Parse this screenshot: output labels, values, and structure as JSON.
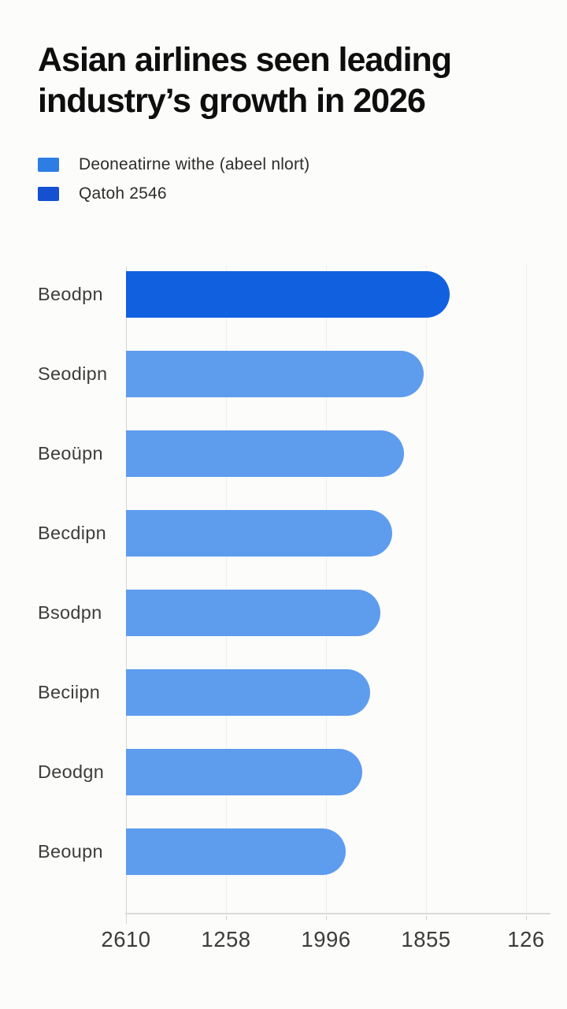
{
  "title": {
    "line1": "Asian airlines seen leading",
    "line2": "industry’s growth in 2026"
  },
  "legend": {
    "items": [
      {
        "label": "Deoneatirne withe (abeel nlort)",
        "color": "#2e7de4"
      },
      {
        "label": "Qatoh 2546",
        "color": "#1450cf"
      }
    ]
  },
  "colors": {
    "bar_light": "#5e9cee",
    "bar_dark": "#1160e0",
    "axis_line": "#d5d5d2",
    "gridline": "#f0efec",
    "title_text": "#0e0e0e",
    "label_text": "#3d3d3d",
    "tick_text": "#3c3c3c",
    "background": "#fcfcfa"
  },
  "chart_data": {
    "type": "bar",
    "orientation": "horizontal",
    "title": "Asian airlines seen leading industry’s growth in 2026",
    "categories": [
      "Beodpn",
      "Seodipn",
      "Beoüpn",
      "Becdipn",
      "Bsodpn",
      "Beciipn",
      "Deodgn",
      "Beoupn"
    ],
    "values_pct_of_axis": [
      81,
      74.5,
      69.5,
      66.5,
      63.5,
      61,
      59,
      55
    ],
    "highlight_index": 0,
    "highlight_series": "Qatoh 2546",
    "base_series": "Deoneatirne withe (abeel nlort)",
    "x_tick_labels": [
      "2610",
      "1258",
      "1996",
      "1855",
      "126"
    ],
    "xlabel": "",
    "ylabel": "",
    "grid": "vertical-faint",
    "legend_position": "top-left"
  }
}
